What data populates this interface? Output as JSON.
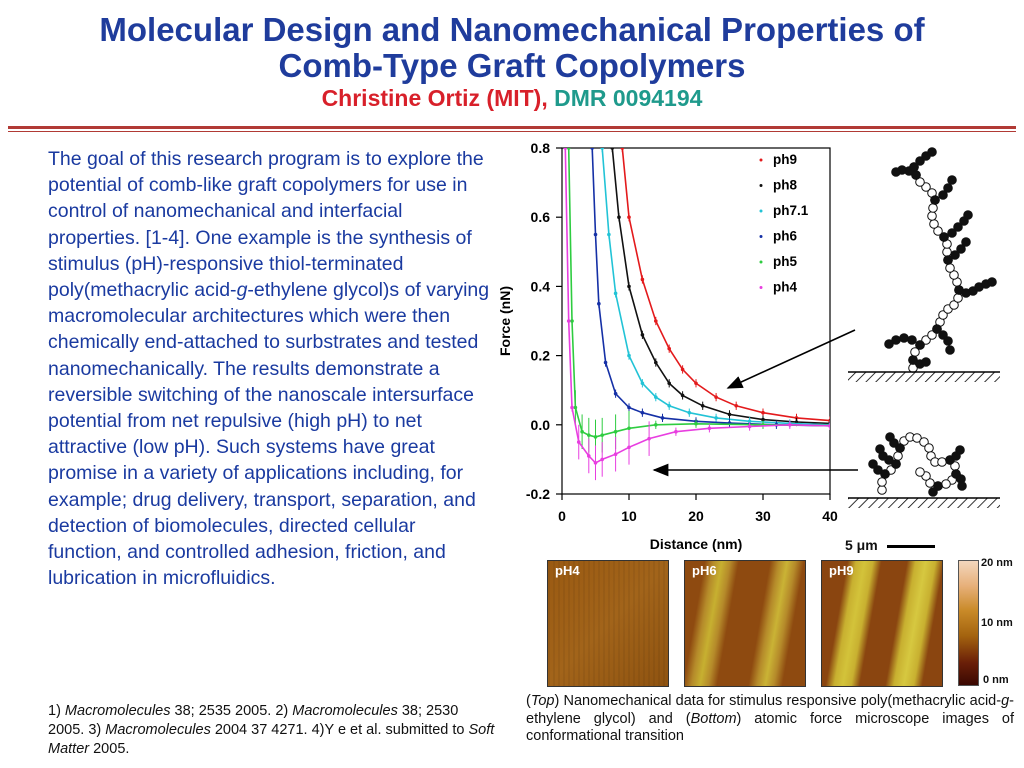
{
  "header": {
    "title_line1": "Molecular Design and Nanomechanical Properties of",
    "title_line2": "Comb-Type Graft Copolymers",
    "author": "Christine Ortiz (MIT),",
    "grant": "DMR 0094194"
  },
  "body_paragraph": {
    "part1": "The goal of this research program is to explore the potential of comb-like graft copolymers for use in control of nanomechanical and interfacial properties. [1-4]. One example is the synthesis of stimulus (pH)-responsive thiol-terminated poly(methacrylic acid-",
    "italic_g": "g",
    "part2": "-ethylene glycol)s of varying macromolecular architectures which were then chemically end-attached to surbstrates and tested nanomechanically. The results demonstrate a reversible switching of the nanoscale intersurface potential from net repulsive (high pH) to net attractive (low pH). Such systems have great promise in a variety of applications including, for example; drug delivery, transport, separation, and detection of biomolecules, directed cellular function, and controlled adhesion, friction, and lubrication in microfluidics."
  },
  "references": {
    "r1_pre": "1) ",
    "r1_journal": "Macromolecules",
    "r1_rest": " 38; 2535 2005. 2) ",
    "r2_journal": "Macromolecules",
    "r2_rest": " 38; 2530 2005. 3) ",
    "r3_journal": "Macromolecules",
    "r3_rest": " 2004 37 4271. 4)Y e  et al. submitted to ",
    "r4_journal": "Soft Matter",
    "r4_rest": " 2005."
  },
  "caption": {
    "open_paren": "(",
    "top_word": "Top",
    "part1": ") Nanomechanical data for stimulus responsive poly(methacrylic acid-",
    "italic_g": "g",
    "part2": "-ethylene glycol) and (",
    "bottom_word": "Bottom",
    "part3": ") atomic force microscope images of conformational transition"
  },
  "afm": {
    "scale_label": "5 μm",
    "panels": [
      "pH4",
      "pH6",
      "pH9"
    ],
    "colorbar_ticks": [
      "20 nm",
      "10 nm",
      "0 nm"
    ]
  },
  "chart_data": {
    "type": "line",
    "xlabel": "Distance (nm)",
    "ylabel": "Force (nN)",
    "xlim": [
      0,
      40
    ],
    "ylim": [
      -0.2,
      0.8
    ],
    "x_ticks": [
      "0",
      "10",
      "20",
      "30",
      "40"
    ],
    "y_ticks": [
      "-0.2",
      "0.0",
      "0.2",
      "0.4",
      "0.6",
      "0.8"
    ],
    "legend_position": "top-right",
    "grid": false,
    "series": [
      {
        "name": "ph9",
        "color": "#e31a1c",
        "x": [
          9,
          10,
          12,
          14,
          16,
          18,
          20,
          23,
          26,
          30,
          35,
          40
        ],
        "y": [
          0.8,
          0.6,
          0.42,
          0.3,
          0.22,
          0.16,
          0.12,
          0.08,
          0.055,
          0.035,
          0.02,
          0.012
        ]
      },
      {
        "name": "ph8",
        "color": "#111111",
        "x": [
          7.5,
          8.5,
          10,
          12,
          14,
          16,
          18,
          21,
          25,
          30,
          35,
          40
        ],
        "y": [
          0.8,
          0.6,
          0.4,
          0.26,
          0.18,
          0.12,
          0.085,
          0.055,
          0.03,
          0.015,
          0.008,
          0.004
        ]
      },
      {
        "name": "ph7.1",
        "color": "#22c3d6",
        "x": [
          6,
          7,
          8,
          10,
          12,
          14,
          16,
          19,
          23,
          28,
          34,
          40
        ],
        "y": [
          0.8,
          0.55,
          0.38,
          0.2,
          0.12,
          0.08,
          0.055,
          0.035,
          0.02,
          0.01,
          0.004,
          0.0
        ]
      },
      {
        "name": "ph6",
        "color": "#1530a6",
        "x": [
          4.5,
          5,
          5.5,
          6.5,
          8,
          10,
          12,
          15,
          20,
          25,
          32,
          40
        ],
        "y": [
          0.8,
          0.55,
          0.35,
          0.18,
          0.09,
          0.05,
          0.035,
          0.02,
          0.01,
          0.005,
          0.0,
          -0.003
        ]
      },
      {
        "name": "ph5",
        "color": "#2ecc40",
        "x": [
          1,
          1.5,
          2,
          3,
          4,
          5,
          6,
          8,
          10,
          14,
          20,
          30,
          40
        ],
        "y": [
          0.8,
          0.3,
          0.05,
          -0.02,
          -0.03,
          -0.035,
          -0.03,
          -0.02,
          -0.01,
          0.0,
          0.003,
          0.0,
          -0.002
        ]
      },
      {
        "name": "ph4",
        "color": "#e83ee0",
        "x": [
          0.5,
          1,
          1.5,
          2.5,
          4,
          5,
          6,
          8,
          10,
          13,
          17,
          22,
          28,
          34,
          40
        ],
        "y": [
          0.8,
          0.3,
          0.05,
          -0.05,
          -0.09,
          -0.11,
          -0.1,
          -0.085,
          -0.065,
          -0.04,
          -0.02,
          -0.01,
          -0.005,
          0.0,
          -0.003
        ]
      }
    ]
  }
}
